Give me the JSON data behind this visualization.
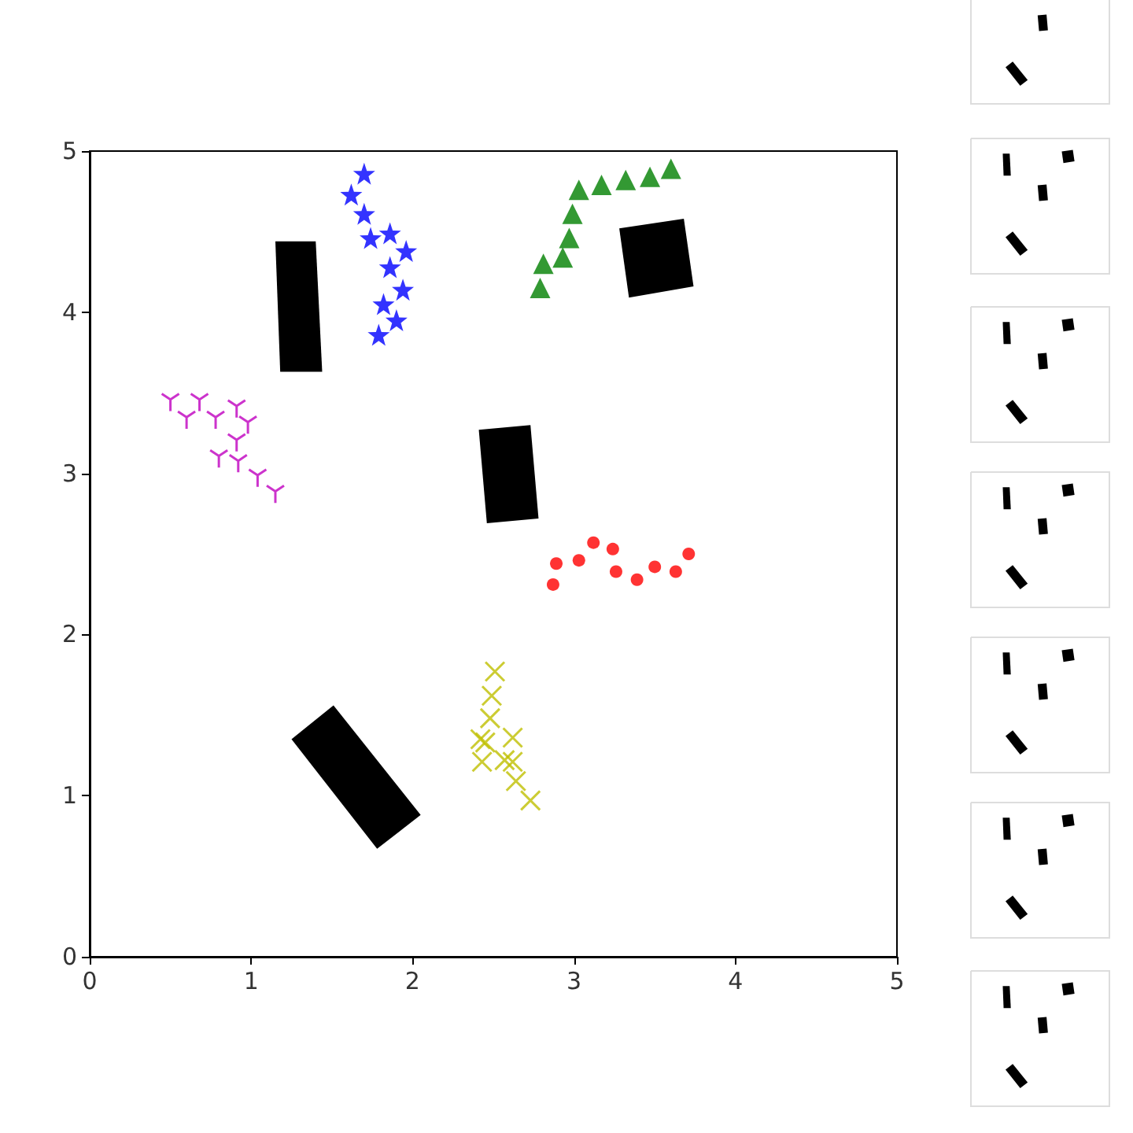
{
  "chart_data": {
    "type": "scatter",
    "xlim": [
      0,
      5
    ],
    "ylim": [
      0,
      5
    ],
    "xticks": [
      0,
      1,
      2,
      3,
      4,
      5
    ],
    "yticks": [
      0,
      1,
      2,
      3,
      4,
      5
    ],
    "series": [
      {
        "color": "#0000ff",
        "marker": "star",
        "x": [
          1.7,
          1.62,
          1.7,
          1.74,
          1.86,
          1.96,
          1.86,
          1.94,
          1.82,
          1.9,
          1.79
        ],
        "values": [
          4.86,
          4.73,
          4.61,
          4.46,
          4.49,
          4.38,
          4.28,
          4.14,
          4.05,
          3.95,
          3.86
        ]
      },
      {
        "color": "#008000",
        "marker": "triangle",
        "x": [
          2.79,
          2.81,
          2.93,
          2.97,
          2.99,
          3.03,
          3.17,
          3.32,
          3.47,
          3.6
        ],
        "values": [
          4.15,
          4.3,
          4.34,
          4.46,
          4.61,
          4.76,
          4.79,
          4.82,
          4.84,
          4.89
        ]
      },
      {
        "color": "#bf00bf",
        "x": [
          0.5,
          0.68,
          0.91,
          0.6,
          0.78,
          0.98,
          0.91,
          0.8,
          0.92,
          1.04,
          1.15
        ],
        "values": [
          3.44,
          3.44,
          3.4,
          3.33,
          3.33,
          3.3,
          3.19,
          3.09,
          3.06,
          2.97,
          2.87
        ]
      },
      {
        "color": "#ff0000",
        "marker": "circle",
        "x": [
          2.89,
          2.87,
          3.03,
          3.12,
          3.24,
          3.26,
          3.39,
          3.5,
          3.63,
          3.71
        ],
        "values": [
          2.44,
          2.31,
          2.46,
          2.57,
          2.53,
          2.39,
          2.34,
          2.42,
          2.39,
          2.5
        ]
      },
      {
        "color": "#bfbf00",
        "marker": "cross",
        "x": [
          2.51,
          2.49,
          2.48,
          2.42,
          2.45,
          2.62,
          2.43,
          2.57,
          2.62,
          2.64,
          2.73
        ],
        "values": [
          1.77,
          1.62,
          1.48,
          1.35,
          1.33,
          1.36,
          1.21,
          1.22,
          1.21,
          1.09,
          0.97
        ]
      }
    ]
  }
}
